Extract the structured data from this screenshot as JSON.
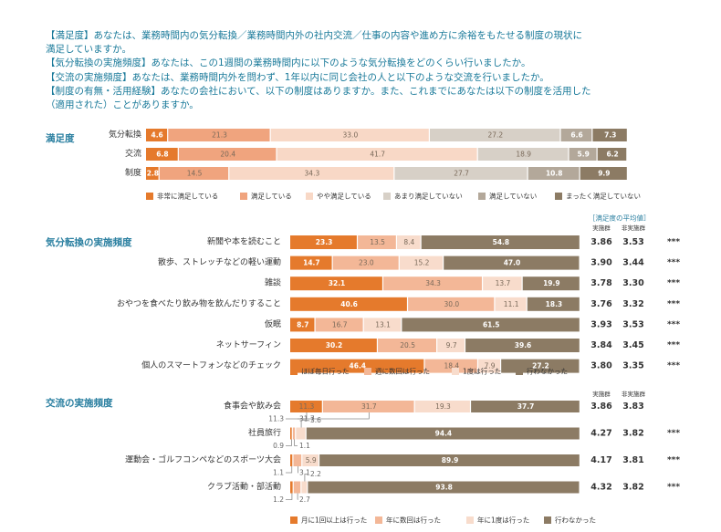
{
  "header": {
    "lines": [
      "【満足度】あなたは、業務時間内の気分転換／業務時間内外の社内交流／仕事の内容や進め方に余裕をもたせる制度の現状に",
      "満足していますか。",
      "【気分転換の実施頻度】あなたは、この1週間の業務時間内に以下のような気分転換をどのくらい行いましたか。",
      "【交流の実施頻度】あなたは、業務時間内外を問わず、1年以内に同じ会社の人と以下のような交流を行いましたか。",
      "【制度の有無・活用経験】あなたの会社において、以下の制度はありますか。また、これまでにあなたは以下の制度を活用した",
      "（適用された）ことがありますか。"
    ]
  },
  "colors": {
    "accent": "#2a7fa0",
    "text": "#333333",
    "sat": [
      "#e57a2c",
      "#f0a47e",
      "#f8d8c6",
      "#d7d0c7",
      "#b3a89a",
      "#8c7b64"
    ],
    "freq": [
      "#e57a2c",
      "#f3b797",
      "#f8dccc",
      "#8c7b64"
    ]
  },
  "chart_data": [
    {
      "type": "bar",
      "orientation": "horizontal",
      "stacked": "100%",
      "title": "満足度",
      "categories": [
        "気分転換",
        "交流",
        "制度"
      ],
      "series": [
        {
          "name": "非常に満足している",
          "values": [
            4.6,
            6.8,
            2.8
          ]
        },
        {
          "name": "満足している",
          "values": [
            21.3,
            20.4,
            14.5
          ]
        },
        {
          "name": "やや満足している",
          "values": [
            33.0,
            41.7,
            34.3
          ]
        },
        {
          "name": "あまり満足していない",
          "values": [
            27.2,
            18.9,
            27.7
          ]
        },
        {
          "name": "満足していない",
          "values": [
            6.6,
            5.9,
            10.8
          ]
        },
        {
          "name": "まったく満足していない",
          "values": [
            7.3,
            6.2,
            9.9
          ]
        }
      ]
    },
    {
      "type": "bar",
      "orientation": "horizontal",
      "stacked": "100%",
      "title": "気分転換の実施頻度",
      "categories": [
        "新聞や本を読むこと",
        "散歩、ストレッチなどの軽い運動",
        "雑談",
        "おやつを食べたり飲み物を飲んだりすること",
        "仮眠",
        "ネットサーフィン",
        "個人のスマートフォンなどのチェック"
      ],
      "series": [
        {
          "name": "ほぼ毎日行った",
          "values": [
            23.3,
            14.7,
            32.1,
            40.6,
            8.7,
            30.2,
            46.4
          ]
        },
        {
          "name": "週に数回は行った",
          "values": [
            13.5,
            23.0,
            34.3,
            30.0,
            16.7,
            20.5,
            18.4
          ]
        },
        {
          "name": "1度は行った",
          "values": [
            8.4,
            15.2,
            13.7,
            11.1,
            13.1,
            9.7,
            7.9
          ]
        },
        {
          "name": "行わなかった",
          "values": [
            54.8,
            47.0,
            19.9,
            18.3,
            61.5,
            39.6,
            27.2
          ]
        }
      ],
      "table": {
        "title": "［満足度の平均値］",
        "columns": [
          "実施群",
          "非実施群"
        ],
        "rows": [
          [
            "3.86",
            "3.53",
            "***"
          ],
          [
            "3.90",
            "3.44",
            "***"
          ],
          [
            "3.78",
            "3.30",
            "***"
          ],
          [
            "3.76",
            "3.32",
            "***"
          ],
          [
            "3.93",
            "3.53",
            "***"
          ],
          [
            "3.84",
            "3.45",
            "***"
          ],
          [
            "3.80",
            "3.35",
            "***"
          ]
        ]
      }
    },
    {
      "type": "bar",
      "orientation": "horizontal",
      "stacked": "100%",
      "title": "交流の実施頻度",
      "categories": [
        "食事会や飲み会",
        "社員旅行",
        "運動会・ゴルフコンペなどのスポーツ大会",
        "クラブ活動・部活動"
      ],
      "series": [
        {
          "name": "月に1回以上は行った",
          "values": [
            11.3,
            0.9,
            1.1,
            1.2
          ]
        },
        {
          "name": "年に数回は行った",
          "values": [
            31.7,
            1.1,
            3.1,
            2.7
          ]
        },
        {
          "name": "年に1度は行った",
          "values": [
            19.3,
            3.6,
            5.9,
            2.2
          ]
        },
        {
          "name": "行わなかった",
          "values": [
            37.7,
            94.4,
            89.9,
            93.8
          ]
        }
      ],
      "table": {
        "columns": [
          "実施群",
          "非実施群"
        ],
        "rows": [
          [
            "3.86",
            "3.83",
            ""
          ],
          [
            "4.27",
            "3.82",
            "***"
          ],
          [
            "4.17",
            "3.81",
            "***"
          ],
          [
            "4.32",
            "3.82",
            "***"
          ]
        ]
      }
    }
  ]
}
